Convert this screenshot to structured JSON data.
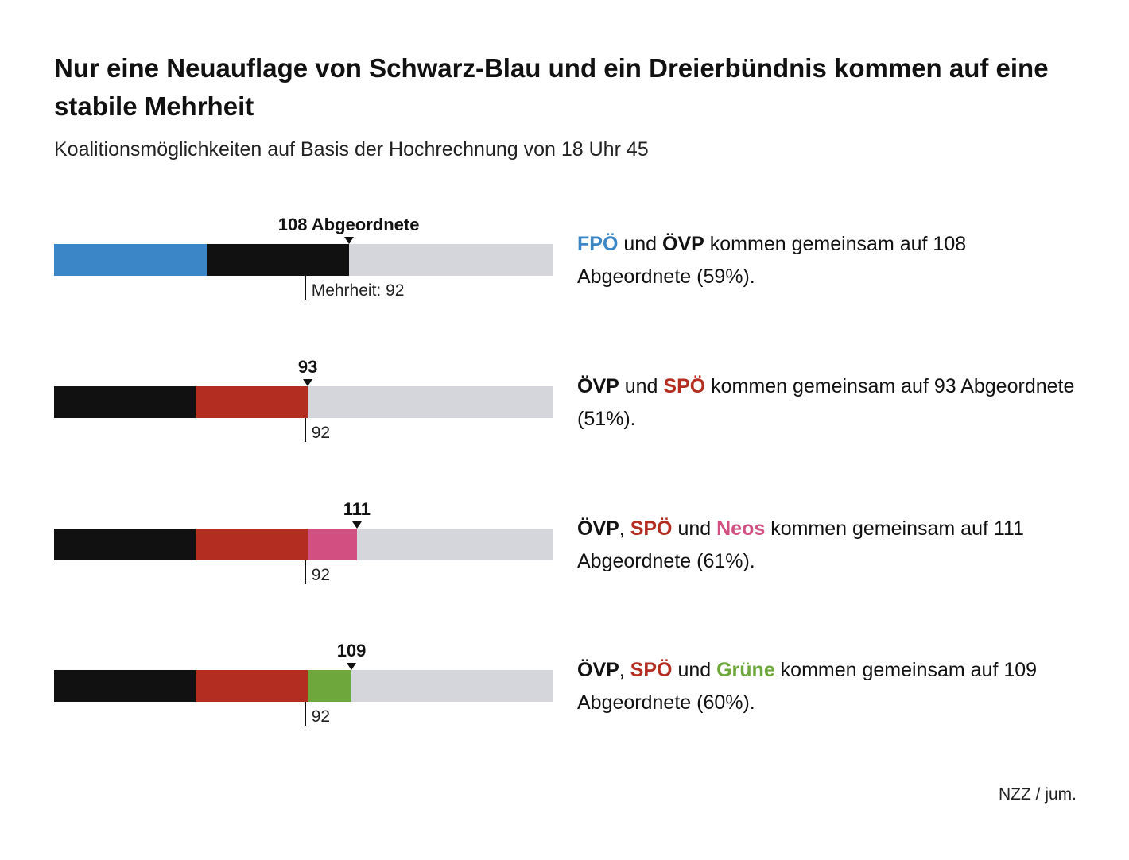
{
  "title": "Nur eine Neuauflage von Schwarz-Blau und ein Dreierbündnis kommen auf eine stabile Mehrheit",
  "subtitle": "Koalitionsmöglichkeiten auf Basis der Hochrechnung von 18 Uhr 45",
  "source": "NZZ / jum.",
  "colors": {
    "FPÖ": "#3a86c6",
    "ÖVP": "#111111",
    "SPÖ": "#b32d21",
    "Neos": "#d14f81",
    "Grüne": "#6ea73c",
    "remaining": "#d5d6db"
  },
  "chart_data": {
    "type": "bar",
    "orientation": "horizontal-stacked",
    "title": "Nur eine Neuauflage von Schwarz-Blau und ein Dreierbündnis kommen auf eine stabile Mehrheit",
    "subtitle": "Koalitionsmöglichkeiten auf Basis der Hochrechnung von 18 Uhr 45",
    "total_seats": 183,
    "majority": 92,
    "xlim": [
      0,
      183
    ],
    "coalitions": [
      {
        "segments": [
          {
            "party": "FPÖ",
            "seats": 56
          },
          {
            "party": "ÖVP",
            "seats": 52
          }
        ],
        "total": 108,
        "total_label": "108 Abgeordnete",
        "majority_label": "Mehrheit: 92",
        "desc": [
          {
            "text": "FPÖ",
            "party": "FPÖ"
          },
          {
            "text": " und "
          },
          {
            "text": "ÖVP",
            "party": "ÖVP"
          },
          {
            "text": " kommen gemeinsam auf 108 Abgeordnete (59%)."
          }
        ]
      },
      {
        "segments": [
          {
            "party": "ÖVP",
            "seats": 52
          },
          {
            "party": "SPÖ",
            "seats": 41
          }
        ],
        "total": 93,
        "total_label": "93",
        "majority_label": "92",
        "desc": [
          {
            "text": "ÖVP",
            "party": "ÖVP"
          },
          {
            "text": " und "
          },
          {
            "text": "SPÖ",
            "party": "SPÖ"
          },
          {
            "text": " kommen gemeinsam auf 93 Abgeordnete (51%)."
          }
        ]
      },
      {
        "segments": [
          {
            "party": "ÖVP",
            "seats": 52
          },
          {
            "party": "SPÖ",
            "seats": 41
          },
          {
            "party": "Neos",
            "seats": 18
          }
        ],
        "total": 111,
        "total_label": "111",
        "majority_label": "92",
        "desc": [
          {
            "text": "ÖVP",
            "party": "ÖVP"
          },
          {
            "text": ", "
          },
          {
            "text": "SPÖ",
            "party": "SPÖ"
          },
          {
            "text": " und "
          },
          {
            "text": "Neos",
            "party": "Neos"
          },
          {
            "text": " kommen gemeinsam auf 111 Abgeordnete (61%)."
          }
        ]
      },
      {
        "segments": [
          {
            "party": "ÖVP",
            "seats": 52
          },
          {
            "party": "SPÖ",
            "seats": 41
          },
          {
            "party": "Grüne",
            "seats": 16
          }
        ],
        "total": 109,
        "total_label": "109",
        "majority_label": "92",
        "desc": [
          {
            "text": "ÖVP",
            "party": "ÖVP"
          },
          {
            "text": ", "
          },
          {
            "text": "SPÖ",
            "party": "SPÖ"
          },
          {
            "text": " und "
          },
          {
            "text": "Grüne",
            "party": "Grüne"
          },
          {
            "text": " kommen gemeinsam auf 109 Abgeordnete (60%)."
          }
        ]
      }
    ]
  }
}
